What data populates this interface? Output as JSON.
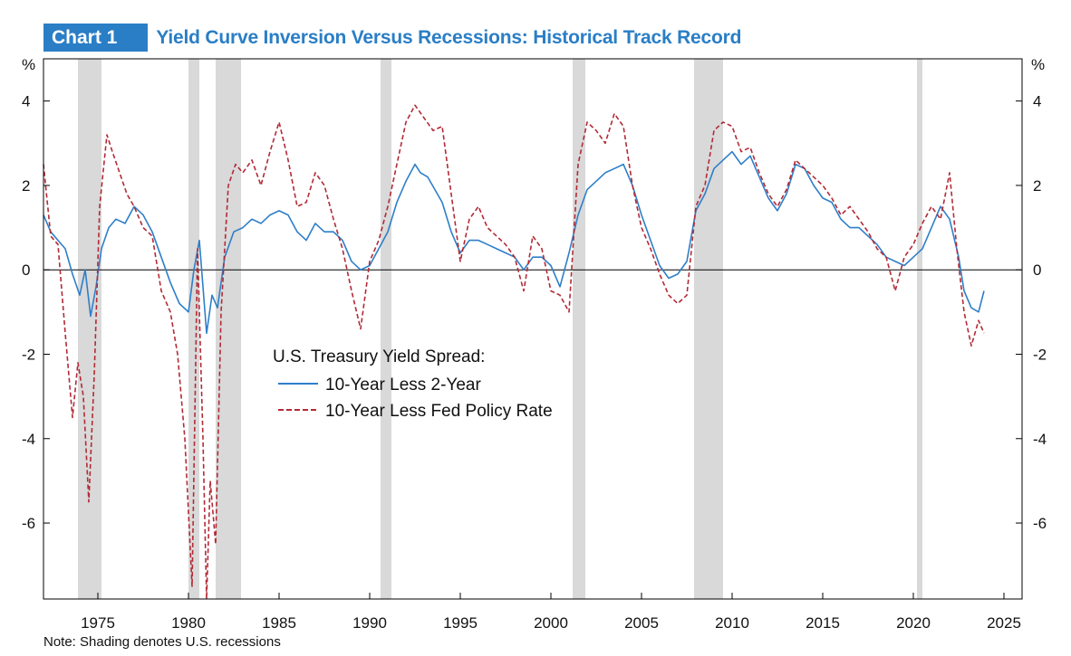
{
  "header": {
    "chart_label": "Chart 1",
    "title": "Yield Curve Inversion Versus Recessions: Historical Track Record"
  },
  "note": "Note: Shading denotes U.S. recessions",
  "colors": {
    "brand_blue": "#2a7ec6",
    "series_2y": "#2e7fc9",
    "series_fed": "#b22a36",
    "recession_shade": "#d9d9d9"
  },
  "chart_data": {
    "type": "line",
    "title": "Yield Curve Inversion Versus Recessions: Historical Track Record",
    "ylabel_left": "%",
    "ylabel_right": "%",
    "xlim": [
      1972,
      2026
    ],
    "ylim": [
      -7.8,
      5.0
    ],
    "x_ticks": [
      1975,
      1980,
      1985,
      1990,
      1995,
      2000,
      2005,
      2010,
      2015,
      2020,
      2025
    ],
    "y_ticks": [
      4,
      2,
      0,
      -2,
      -4,
      -6
    ],
    "legend": {
      "title": "U.S. Treasury Yield Spread:",
      "placement": "center"
    },
    "recessions": [
      [
        1973.9,
        1975.2
      ],
      [
        1980.0,
        1980.6
      ],
      [
        1981.5,
        1982.9
      ],
      [
        1990.6,
        1991.2
      ],
      [
        2001.2,
        2001.9
      ],
      [
        2007.9,
        2009.5
      ],
      [
        2020.2,
        2020.5
      ]
    ],
    "series": [
      {
        "name": "10-Year Less 2-Year",
        "style": "solid",
        "x": [
          1972.0,
          1972.4,
          1972.8,
          1973.2,
          1973.6,
          1974.0,
          1974.3,
          1974.6,
          1974.9,
          1975.2,
          1975.6,
          1976.0,
          1976.5,
          1977.0,
          1977.5,
          1978.0,
          1978.5,
          1979.0,
          1979.5,
          1980.0,
          1980.3,
          1980.6,
          1981.0,
          1981.3,
          1981.6,
          1982.0,
          1982.5,
          1983.0,
          1983.5,
          1984.0,
          1984.5,
          1985.0,
          1985.5,
          1986.0,
          1986.5,
          1987.0,
          1987.5,
          1988.0,
          1988.5,
          1989.0,
          1989.5,
          1990.0,
          1990.5,
          1991.0,
          1991.5,
          1992.0,
          1992.5,
          1992.8,
          1993.2,
          1993.6,
          1994.0,
          1994.5,
          1995.0,
          1995.5,
          1996.0,
          1996.5,
          1997.0,
          1997.5,
          1998.0,
          1998.5,
          1999.0,
          1999.5,
          2000.0,
          2000.5,
          2001.0,
          2001.5,
          2002.0,
          2002.5,
          2003.0,
          2003.5,
          2004.0,
          2004.5,
          2005.0,
          2005.5,
          2006.0,
          2006.5,
          2007.0,
          2007.5,
          2008.0,
          2008.5,
          2009.0,
          2009.5,
          2010.0,
          2010.5,
          2011.0,
          2011.5,
          2012.0,
          2012.5,
          2013.0,
          2013.5,
          2014.0,
          2014.5,
          2015.0,
          2015.5,
          2016.0,
          2016.5,
          2017.0,
          2017.5,
          2018.0,
          2018.5,
          2019.0,
          2019.5,
          2020.0,
          2020.5,
          2021.0,
          2021.5,
          2022.0,
          2022.5,
          2022.8,
          2023.2,
          2023.6,
          2023.9
        ],
        "values": [
          1.3,
          0.9,
          0.7,
          0.5,
          -0.1,
          -0.6,
          0.0,
          -1.1,
          -0.4,
          0.5,
          1.0,
          1.2,
          1.1,
          1.5,
          1.3,
          0.9,
          0.3,
          -0.3,
          -0.8,
          -1.0,
          0.0,
          0.7,
          -1.5,
          -0.6,
          -0.9,
          0.3,
          0.9,
          1.0,
          1.2,
          1.1,
          1.3,
          1.4,
          1.3,
          0.9,
          0.7,
          1.1,
          0.9,
          0.9,
          0.7,
          0.2,
          0.0,
          0.1,
          0.5,
          0.9,
          1.6,
          2.1,
          2.5,
          2.3,
          2.2,
          1.9,
          1.6,
          0.9,
          0.4,
          0.7,
          0.7,
          0.6,
          0.5,
          0.4,
          0.3,
          0.0,
          0.3,
          0.3,
          0.1,
          -0.4,
          0.4,
          1.3,
          1.9,
          2.1,
          2.3,
          2.4,
          2.5,
          2.0,
          1.3,
          0.7,
          0.1,
          -0.2,
          -0.1,
          0.2,
          1.4,
          1.8,
          2.4,
          2.6,
          2.8,
          2.5,
          2.7,
          2.2,
          1.7,
          1.4,
          1.8,
          2.5,
          2.4,
          2.0,
          1.7,
          1.6,
          1.2,
          1.0,
          1.0,
          0.8,
          0.6,
          0.3,
          0.2,
          0.1,
          0.3,
          0.5,
          1.0,
          1.5,
          1.2,
          0.3,
          -0.5,
          -0.9,
          -1.0,
          -0.5
        ]
      },
      {
        "name": "10-Year Less Fed Policy Rate",
        "style": "dashed",
        "x": [
          1972.0,
          1972.4,
          1972.8,
          1973.2,
          1973.6,
          1973.9,
          1974.2,
          1974.5,
          1974.8,
          1975.1,
          1975.5,
          1975.8,
          1976.2,
          1976.6,
          1977.0,
          1977.5,
          1978.0,
          1978.5,
          1979.0,
          1979.4,
          1979.8,
          1980.2,
          1980.5,
          1980.8,
          1981.0,
          1981.2,
          1981.5,
          1981.8,
          1982.2,
          1982.6,
          1983.0,
          1983.5,
          1984.0,
          1984.5,
          1985.0,
          1985.5,
          1986.0,
          1986.5,
          1987.0,
          1987.5,
          1988.0,
          1988.5,
          1989.0,
          1989.5,
          1990.0,
          1990.5,
          1991.0,
          1991.5,
          1992.0,
          1992.5,
          1993.0,
          1993.5,
          1994.0,
          1994.5,
          1995.0,
          1995.5,
          1996.0,
          1996.5,
          1997.0,
          1997.5,
          1998.0,
          1998.5,
          1999.0,
          1999.5,
          2000.0,
          2000.5,
          2001.0,
          2001.5,
          2002.0,
          2002.5,
          2003.0,
          2003.5,
          2004.0,
          2004.5,
          2005.0,
          2005.5,
          2006.0,
          2006.5,
          2007.0,
          2007.5,
          2008.0,
          2008.5,
          2009.0,
          2009.5,
          2010.0,
          2010.5,
          2011.0,
          2011.5,
          2012.0,
          2012.5,
          2013.0,
          2013.5,
          2014.0,
          2014.5,
          2015.0,
          2015.5,
          2016.0,
          2016.5,
          2017.0,
          2017.5,
          2018.0,
          2018.5,
          2019.0,
          2019.5,
          2020.0,
          2020.5,
          2021.0,
          2021.5,
          2022.0,
          2022.4,
          2022.8,
          2023.2,
          2023.6,
          2023.9
        ],
        "values": [
          2.5,
          0.8,
          0.6,
          -1.5,
          -3.5,
          -2.2,
          -3.0,
          -5.5,
          -2.5,
          1.5,
          3.2,
          2.8,
          2.3,
          1.8,
          1.5,
          1.0,
          0.8,
          -0.5,
          -1.0,
          -2.0,
          -4.0,
          -7.5,
          0.5,
          -4.0,
          -7.8,
          -5.0,
          -6.5,
          -1.0,
          2.0,
          2.5,
          2.3,
          2.6,
          2.0,
          2.8,
          3.5,
          2.6,
          1.5,
          1.6,
          2.3,
          2.0,
          1.2,
          0.5,
          -0.5,
          -1.4,
          0.2,
          0.7,
          1.5,
          2.5,
          3.5,
          3.9,
          3.6,
          3.3,
          3.4,
          1.8,
          0.2,
          1.2,
          1.5,
          1.0,
          0.8,
          0.6,
          0.3,
          -0.5,
          0.8,
          0.5,
          -0.5,
          -0.6,
          -1.0,
          2.5,
          3.5,
          3.3,
          3.0,
          3.7,
          3.4,
          2.0,
          1.0,
          0.5,
          -0.1,
          -0.6,
          -0.8,
          -0.6,
          1.5,
          2.0,
          3.3,
          3.5,
          3.4,
          2.8,
          2.9,
          2.3,
          1.8,
          1.5,
          1.9,
          2.6,
          2.4,
          2.2,
          2.0,
          1.7,
          1.3,
          1.5,
          1.2,
          0.9,
          0.5,
          0.3,
          -0.5,
          0.3,
          0.6,
          1.1,
          1.5,
          1.2,
          2.3,
          0.5,
          -1.0,
          -1.8,
          -1.2,
          -1.5
        ]
      }
    ]
  }
}
